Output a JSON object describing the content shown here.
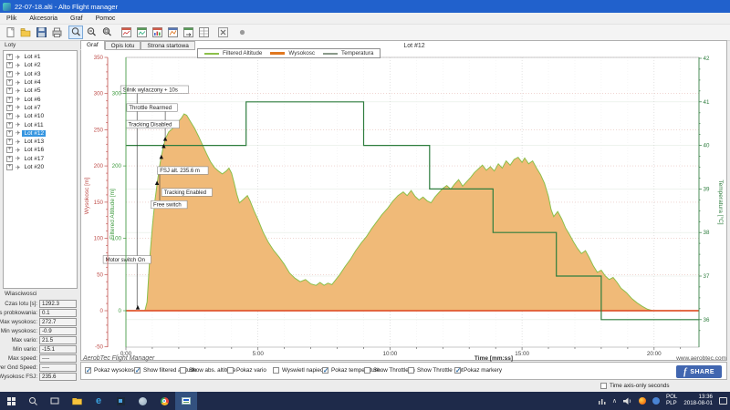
{
  "window": {
    "title": "22-07-18.alti - Alto Flight manager"
  },
  "menu": {
    "items": [
      "Plik",
      "Akcesoria",
      "Graf",
      "Pomoc"
    ]
  },
  "toolbar": {
    "icons": [
      "new-file",
      "open-folder",
      "save",
      "print",
      "zoom-select",
      "zoom-out",
      "zoom-pan",
      "chart-window-red",
      "chart-window-green",
      "chart-window-bar",
      "chart-window-line",
      "chart-window-export",
      "chart-window-table",
      "close-window",
      "record-dot"
    ]
  },
  "sidebar": {
    "title": "Loty",
    "selected": "Lot #12",
    "items": [
      "Lot #1",
      "Lot #2",
      "Lot #3",
      "Lot #4",
      "Lot #5",
      "Lot #6",
      "Lot #7",
      "Lot #10",
      "Lot #11",
      "Lot #12",
      "Lot #13",
      "Lot #16",
      "Lot #17",
      "Lot #20"
    ]
  },
  "properties": {
    "title": "Wlasciwosci",
    "rows": [
      {
        "label": "Czas lotu [s]",
        "value": "1292.3"
      },
      {
        "label": "Czas probkowania",
        "value": "0.1"
      },
      {
        "label": "Max wysokosc",
        "value": "272.7"
      },
      {
        "label": "Min wysokosc",
        "value": "-0.9"
      },
      {
        "label": "Max vario",
        "value": "21.5"
      },
      {
        "label": "Min vario",
        "value": "-15.1"
      },
      {
        "label": "Max speed",
        "value": "----"
      },
      {
        "label": "Aver Gnd Speed",
        "value": "----"
      },
      {
        "label": "Wysokosc FSJ",
        "value": "235.6"
      }
    ]
  },
  "tabs": {
    "items": [
      "Graf",
      "Opis lotu",
      "Strona startowa"
    ],
    "active": "Graf"
  },
  "footer": {
    "brand": "AerobTec Flight Manager",
    "website": "www.aerobtec.com"
  },
  "controls": {
    "checkboxes": [
      {
        "label": "Pokaz wysokosc",
        "checked": true
      },
      {
        "label": "Show filtered altitude",
        "checked": true
      },
      {
        "label": "Show abs. altitude",
        "checked": false
      },
      {
        "label": "Pokaz vario",
        "checked": false
      },
      {
        "label": "Wyswietl napiecie",
        "checked": false
      },
      {
        "label": "Pokaz temperature",
        "checked": true
      },
      {
        "label": "Show Throttle In",
        "checked": false
      },
      {
        "label": "Show Throttle Out",
        "checked": false
      },
      {
        "label": "Pokaz markery",
        "checked": true
      }
    ],
    "share_label": "SHARE",
    "time_axis_label": "Time axis-only seconds",
    "time_axis_checked": false
  },
  "taskbar": {
    "apps": [
      "start",
      "search",
      "task-view",
      "file-explorer",
      "edge",
      "photos",
      "google-earth",
      "chrome",
      "alto-active"
    ],
    "tray_icons": [
      "activity-icon",
      "chevron-up-icon",
      "volume-icon",
      "firefox-icon",
      "messenger-icon"
    ],
    "lang_line1": "POL",
    "lang_line2": "PLP",
    "time": "13:36",
    "date": "2018-08-01"
  },
  "chart_data": {
    "type": "area",
    "title": "Lot #12",
    "xlabel": "Time [mm:ss]",
    "x_ticks": [
      "0:00",
      "5:00",
      "10:00",
      "15:00",
      "20:00"
    ],
    "x_tick_minutes": [
      0,
      5,
      10,
      15,
      20
    ],
    "x_max_minutes": 21.7,
    "left_axis": {
      "label": "Wysokosc [m]",
      "color": "#c0504d",
      "min": -50,
      "max": 350,
      "major": 50,
      "minor": 10
    },
    "left_axis2": {
      "label": "Filtered Altitude [m]",
      "color": "#3f9b3f",
      "ticks": [
        0,
        100,
        200,
        300
      ]
    },
    "right_axis": {
      "label": "Temperatura [°C]",
      "color": "#2e7d3e",
      "min": 36,
      "max": 42,
      "major": 1
    },
    "series": [
      {
        "name": "Filtered Altitude",
        "color": "#8cbf4a",
        "role": "area-outline"
      },
      {
        "name": "Wysokosc",
        "color": "#e07820",
        "fill": "#f0ba78",
        "baseline_color": "#e0572f",
        "role": "area"
      },
      {
        "name": "Temperatura",
        "color": "#2e7d3e",
        "legend_color": "#8a9a8a",
        "role": "step"
      }
    ],
    "altitude_points": [
      [
        0,
        0
      ],
      [
        0.72,
        0
      ],
      [
        0.8,
        12
      ],
      [
        0.9,
        70
      ],
      [
        1.0,
        115
      ],
      [
        1.1,
        152
      ],
      [
        1.2,
        180
      ],
      [
        1.3,
        205
      ],
      [
        1.4,
        224
      ],
      [
        1.5,
        238
      ],
      [
        1.62,
        247
      ],
      [
        1.75,
        251
      ],
      [
        1.88,
        257
      ],
      [
        2.0,
        262
      ],
      [
        2.1,
        266
      ],
      [
        2.2,
        272
      ],
      [
        2.3,
        270
      ],
      [
        2.45,
        261
      ],
      [
        2.6,
        252
      ],
      [
        2.75,
        241
      ],
      [
        2.9,
        229
      ],
      [
        3.05,
        217
      ],
      [
        3.2,
        206
      ],
      [
        3.35,
        198
      ],
      [
        3.5,
        193
      ],
      [
        3.65,
        189
      ],
      [
        3.8,
        193
      ],
      [
        3.9,
        197
      ],
      [
        4.0,
        190
      ],
      [
        4.1,
        176
      ],
      [
        4.2,
        161
      ],
      [
        4.3,
        149
      ],
      [
        4.45,
        154
      ],
      [
        4.6,
        159
      ],
      [
        4.7,
        152
      ],
      [
        4.85,
        138
      ],
      [
        5.0,
        126
      ],
      [
        5.2,
        108
      ],
      [
        5.4,
        94
      ],
      [
        5.6,
        83
      ],
      [
        5.8,
        74
      ],
      [
        6.0,
        64
      ],
      [
        6.2,
        52
      ],
      [
        6.4,
        45
      ],
      [
        6.6,
        40
      ],
      [
        6.8,
        43
      ],
      [
        7.0,
        37
      ],
      [
        7.2,
        35
      ],
      [
        7.35,
        39
      ],
      [
        7.5,
        35
      ],
      [
        7.65,
        38
      ],
      [
        7.8,
        36
      ],
      [
        7.95,
        43
      ],
      [
        8.1,
        50
      ],
      [
        8.3,
        61
      ],
      [
        8.5,
        71
      ],
      [
        8.7,
        83
      ],
      [
        8.9,
        93
      ],
      [
        9.1,
        102
      ],
      [
        9.3,
        113
      ],
      [
        9.5,
        123
      ],
      [
        9.7,
        133
      ],
      [
        9.9,
        141
      ],
      [
        10.1,
        151
      ],
      [
        10.3,
        159
      ],
      [
        10.5,
        164
      ],
      [
        10.65,
        159
      ],
      [
        10.8,
        166
      ],
      [
        10.95,
        158
      ],
      [
        11.1,
        153
      ],
      [
        11.25,
        157
      ],
      [
        11.4,
        152
      ],
      [
        11.55,
        149
      ],
      [
        11.7,
        157
      ],
      [
        11.85,
        163
      ],
      [
        12.0,
        169
      ],
      [
        12.15,
        173
      ],
      [
        12.3,
        168
      ],
      [
        12.45,
        175
      ],
      [
        12.6,
        181
      ],
      [
        12.75,
        172
      ],
      [
        12.9,
        178
      ],
      [
        13.05,
        184
      ],
      [
        13.2,
        191
      ],
      [
        13.35,
        196
      ],
      [
        13.5,
        201
      ],
      [
        13.65,
        194
      ],
      [
        13.8,
        199
      ],
      [
        13.95,
        193
      ],
      [
        14.1,
        203
      ],
      [
        14.25,
        197
      ],
      [
        14.4,
        207
      ],
      [
        14.55,
        201
      ],
      [
        14.7,
        209
      ],
      [
        14.85,
        212
      ],
      [
        15.0,
        205
      ],
      [
        15.1,
        211
      ],
      [
        15.25,
        203
      ],
      [
        15.4,
        207
      ],
      [
        15.55,
        197
      ],
      [
        15.7,
        188
      ],
      [
        15.85,
        176
      ],
      [
        16.0,
        158
      ],
      [
        16.1,
        140
      ],
      [
        16.2,
        130
      ],
      [
        16.35,
        137
      ],
      [
        16.5,
        127
      ],
      [
        16.65,
        114
      ],
      [
        16.8,
        105
      ],
      [
        16.95,
        95
      ],
      [
        17.1,
        86
      ],
      [
        17.25,
        79
      ],
      [
        17.4,
        83
      ],
      [
        17.55,
        73
      ],
      [
        17.7,
        62
      ],
      [
        17.85,
        53
      ],
      [
        18.0,
        56
      ],
      [
        18.15,
        48
      ],
      [
        18.3,
        43
      ],
      [
        18.45,
        46
      ],
      [
        18.6,
        39
      ],
      [
        18.75,
        31
      ],
      [
        18.95,
        25
      ],
      [
        19.15,
        17
      ],
      [
        19.35,
        11
      ],
      [
        19.55,
        6
      ],
      [
        19.75,
        2
      ],
      [
        19.95,
        0
      ],
      [
        21.7,
        0
      ]
    ],
    "temperature_points": [
      [
        0,
        40
      ],
      [
        4.55,
        40
      ],
      [
        4.55,
        41
      ],
      [
        9.0,
        41
      ],
      [
        9.0,
        40
      ],
      [
        11.5,
        40
      ],
      [
        11.5,
        39
      ],
      [
        13.9,
        39
      ],
      [
        13.9,
        38
      ],
      [
        16.3,
        38
      ],
      [
        16.3,
        37
      ],
      [
        18.0,
        37
      ],
      [
        18.0,
        36
      ],
      [
        21.7,
        36
      ]
    ],
    "markers": [
      [
        0.45,
        4
      ],
      [
        1.18,
        176
      ],
      [
        1.26,
        194
      ],
      [
        1.34,
        212
      ],
      [
        1.43,
        227
      ],
      [
        1.49,
        237
      ]
    ],
    "annotations": [
      {
        "t": -0.2,
        "alt": 311,
        "label": "Silnik wylaczony + 10s"
      },
      {
        "t": 0.03,
        "alt": 286,
        "label": "Throttle Rearmed"
      },
      {
        "t": 0.0,
        "alt": 263,
        "label": "Tracking Disabled"
      },
      {
        "t": 1.2,
        "alt": 199,
        "label": "FSJ alt. 235.6 m"
      },
      {
        "t": 1.35,
        "alt": 169,
        "label": "Tracking Enabled"
      },
      {
        "t": 0.95,
        "alt": 152,
        "label": "Free switch"
      },
      {
        "t": -0.86,
        "alt": 76,
        "label": "Motor switch On"
      }
    ],
    "connectors": [
      {
        "t": 0.42,
        "a1": 302,
        "a2": 6
      },
      {
        "t": 1.49,
        "a1": 278,
        "a2": 240
      },
      {
        "t": 1.28,
        "a1": 196,
        "a2": 142
      }
    ]
  }
}
